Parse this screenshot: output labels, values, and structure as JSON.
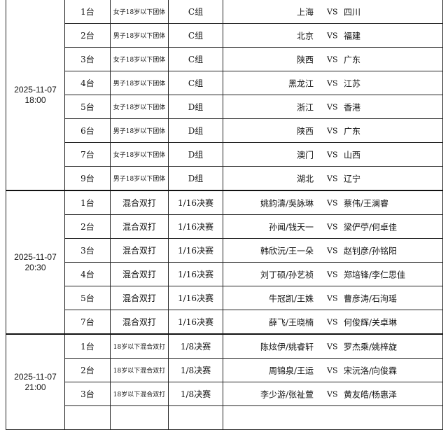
{
  "vs_label": "VS",
  "sessions": [
    {
      "date": "2025-11-07",
      "time": "18:00",
      "matches": [
        {
          "table": "1台",
          "event": "女子18岁以下团体",
          "round": "C组",
          "team_a": "上海",
          "team_b": "四川"
        },
        {
          "table": "2台",
          "event": "男子18岁以下团体",
          "round": "C组",
          "team_a": "北京",
          "team_b": "福建"
        },
        {
          "table": "3台",
          "event": "女子18岁以下团体",
          "round": "C组",
          "team_a": "陕西",
          "team_b": "广东"
        },
        {
          "table": "4台",
          "event": "男子18岁以下团体",
          "round": "C组",
          "team_a": "黑龙江",
          "team_b": "江苏"
        },
        {
          "table": "5台",
          "event": "女子18岁以下团体",
          "round": "D组",
          "team_a": "浙江",
          "team_b": "香港"
        },
        {
          "table": "6台",
          "event": "男子18岁以下团体",
          "round": "D组",
          "team_a": "陕西",
          "team_b": "广东"
        },
        {
          "table": "7台",
          "event": "女子18岁以下团体",
          "round": "D组",
          "team_a": "澳门",
          "team_b": "山西"
        },
        {
          "table": "9台",
          "event": "男子18岁以下团体",
          "round": "D组",
          "team_a": "湖北",
          "team_b": "辽宁"
        }
      ]
    },
    {
      "date": "2025-11-07",
      "time": "20:30",
      "matches": [
        {
          "table": "1台",
          "event": "混合双打",
          "round": "1/16决赛",
          "team_a": "姚鈞濤/吳詠琳",
          "team_b": "蔡伟/王澜睿"
        },
        {
          "table": "2台",
          "event": "混合双打",
          "round": "1/16决赛",
          "team_a": "孙闻/钱天一",
          "team_b": "梁俨苧/何卓佳"
        },
        {
          "table": "3台",
          "event": "混合双打",
          "round": "1/16决赛",
          "team_a": "韩欣沅/王一朵",
          "team_b": "赵钊彦/孙铭阳"
        },
        {
          "table": "4台",
          "event": "混合双打",
          "round": "1/16决赛",
          "team_a": "刘丁硕/孙艺祯",
          "team_b": "郑培锋/李仁思佳"
        },
        {
          "table": "5台",
          "event": "混合双打",
          "round": "1/16决赛",
          "team_a": "牛冠凯/王姝",
          "team_b": "曹彦涛/石洵瑶"
        },
        {
          "table": "7台",
          "event": "混合双打",
          "round": "1/16决赛",
          "team_a": "薛飞/王晓楠",
          "team_b": "何俊辉/关卓琳"
        }
      ]
    },
    {
      "date": "2025-11-07",
      "time": "21:00",
      "matches": [
        {
          "table": "1台",
          "event": "18岁以下混合双打",
          "round": "1/8决赛",
          "team_a": "陈炫伊/姚睿轩",
          "team_b": "罗杰乘/姚梓旋"
        },
        {
          "table": "2台",
          "event": "18岁以下混合双打",
          "round": "1/8决赛",
          "team_a": "周锦泉/王运",
          "team_b": "宋沅洛/向俊霖"
        },
        {
          "table": "3台",
          "event": "18岁以下混合双打",
          "round": "1/8决赛",
          "team_a": "李少游/张祉萱",
          "team_b": "黄友皓/杨惠泽"
        }
      ]
    }
  ]
}
